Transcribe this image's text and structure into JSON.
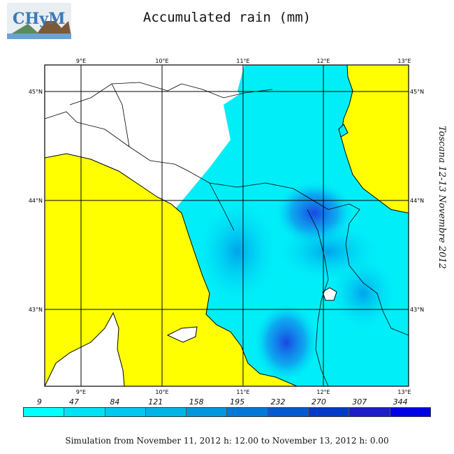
{
  "header": {
    "logo_text": "CHyM",
    "title": "Accumulated rain (mm)"
  },
  "map": {
    "region_label": "Toscana 12-13 Novembre 2012",
    "lon_labels": [
      "9°E",
      "10°E",
      "11°E",
      "12°E",
      "13°E"
    ],
    "lat_labels": [
      "45°N",
      "44°N",
      "43°N"
    ],
    "sea_color": "#ffff00",
    "land_base_color": "#00f0f8",
    "border_color": "#000000"
  },
  "legend": {
    "values": [
      "9",
      "47",
      "84",
      "121",
      "158",
      "195",
      "232",
      "270",
      "307",
      "344"
    ],
    "colors": [
      "#00ffff",
      "#00e1f5",
      "#00c8f0",
      "#00b4e8",
      "#0096e0",
      "#0078d8",
      "#005ad0",
      "#003cc8",
      "#1e1ec8",
      "#0000e6"
    ]
  },
  "footer": {
    "caption": "Simulation from November 11, 2012 h: 12.00 to November 13, 2012 h: 0.00"
  }
}
